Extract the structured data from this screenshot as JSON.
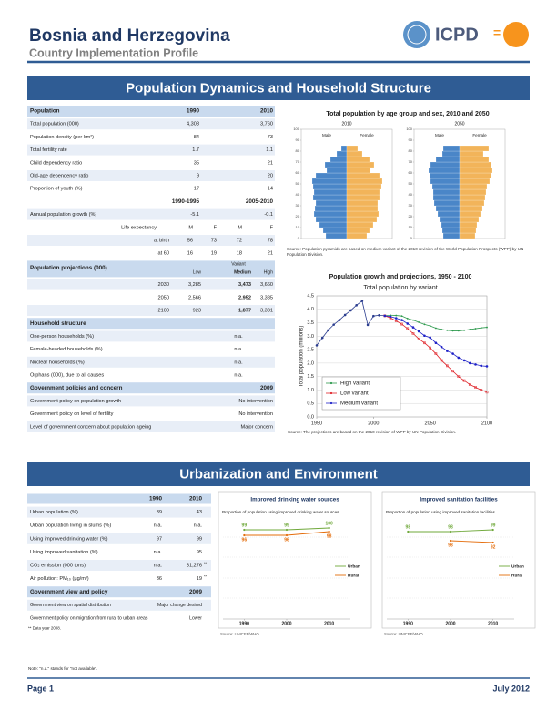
{
  "header": {
    "title": "Bosnia and Herzegovina",
    "subtitle": "Country Implementation Profile",
    "logo": "ICPD"
  },
  "section1": {
    "title": "Population Dynamics and Household Structure",
    "table": {
      "header": [
        "Population",
        "1990",
        "2010"
      ],
      "rows": [
        [
          "Total population (000)",
          "4,308",
          "3,760"
        ],
        [
          "Population density (per km²)",
          "84",
          "73"
        ],
        [
          "Total fertility rate",
          "1.7",
          "1.1"
        ],
        [
          "Child dependency ratio",
          "35",
          "21"
        ],
        [
          "Old-age dependency ratio",
          "9",
          "20"
        ],
        [
          "Proportion of youth (%)",
          "17",
          "14"
        ]
      ],
      "period_header": [
        "1990-1995",
        "2005-2010"
      ],
      "growth_row": [
        "Annual population growth (%)",
        "-5.1",
        "-0.1"
      ],
      "life": {
        "label": "Life expectancy",
        "cols": [
          "M",
          "F",
          "M",
          "F"
        ],
        "rows": [
          [
            "at birth",
            "56",
            "73",
            "72",
            "78"
          ],
          [
            "at 60",
            "16",
            "19",
            "18",
            "21"
          ]
        ]
      },
      "projections": {
        "title": "Population projections (000)",
        "variant": "Variant",
        "cols": [
          "Low",
          "Medium",
          "High"
        ],
        "rows": [
          [
            "2030",
            "3,285",
            "3,473",
            "3,660"
          ],
          [
            "2050",
            "2,566",
            "2,952",
            "3,385"
          ],
          [
            "2100",
            "923",
            "1,877",
            "3,331"
          ]
        ]
      },
      "household": {
        "title": "Household structure",
        "rows": [
          [
            "One-person households (%)",
            "n.a."
          ],
          [
            "Female-headed households (%)",
            "n.a."
          ],
          [
            "Nuclear households (%)",
            "n.a."
          ],
          [
            "Orphans (000), due to all causes",
            "n.a."
          ]
        ]
      },
      "policies": {
        "title": "Government policies and concern",
        "year": "2009",
        "rows": [
          [
            "Government policy on population growth",
            "No intervention"
          ],
          [
            "Government policy on level of fertility",
            "No intervention"
          ],
          [
            "Level of government concern about population ageing",
            "Major concern"
          ]
        ]
      }
    }
  },
  "section2": {
    "title": "Urbanization and Environment",
    "table": {
      "header": [
        "1990",
        "2010"
      ],
      "rows": [
        [
          "Urban population (%)",
          "39",
          "43"
        ],
        [
          "Urban population living in slums (%)",
          "n.a.",
          "n.a."
        ],
        [
          "Using improved drinking water (%)",
          "97",
          "99"
        ],
        [
          "Using improved sanitation (%)",
          "n.a.",
          "95"
        ],
        [
          "CO₂ emission (000 tons)",
          "n.a.",
          "31,276",
          "**"
        ],
        [
          "Air pollution: PM₁₀ (µg/m³)",
          "36",
          "19",
          "**"
        ]
      ],
      "policy_header": [
        "Government view and policy",
        "2009"
      ],
      "policy_rows": [
        [
          "Government view on spatial distribution",
          "Major change desired"
        ],
        [
          "Government policy on migration from rural to urban areas",
          "Lower"
        ]
      ],
      "footnote": "** Data year 2008."
    }
  },
  "chart_data": [
    {
      "type": "pyramid",
      "title": "Total population by age group and sex, 2010 and 2050",
      "ylim": [
        0,
        100
      ],
      "yticks": [
        0,
        10,
        20,
        30,
        40,
        50,
        60,
        70,
        80,
        90,
        100
      ],
      "xlim": [
        -5,
        5
      ],
      "panels": [
        {
          "year": "2010",
          "series": [
            {
              "name": "Male",
              "color": "#4a86c8",
              "values": [
                2.3,
                2.6,
                3.0,
                3.4,
                3.6,
                3.5,
                3.4,
                3.7,
                3.6,
                3.7,
                3.8,
                3.4,
                2.2,
                2.4,
                1.8,
                1.1,
                0.6
              ]
            },
            {
              "name": "Female",
              "color": "#f2b45a",
              "values": [
                2.2,
                2.5,
                2.9,
                3.3,
                3.5,
                3.4,
                3.4,
                3.6,
                3.6,
                3.8,
                3.9,
                3.6,
                2.6,
                3.0,
                2.5,
                1.7,
                1.2
              ]
            }
          ]
        },
        {
          "year": "2050",
          "series": [
            {
              "name": "Male",
              "color": "#4a86c8",
              "values": [
                1.8,
                1.9,
                2.0,
                2.2,
                2.4,
                2.6,
                2.8,
                2.9,
                2.9,
                3.0,
                3.2,
                3.3,
                3.4,
                3.2,
                2.6,
                1.9,
                1.8
              ]
            },
            {
              "name": "Female",
              "color": "#f2b45a",
              "values": [
                1.7,
                1.8,
                1.9,
                2.1,
                2.3,
                2.5,
                2.7,
                2.8,
                2.9,
                3.0,
                3.3,
                3.5,
                3.6,
                3.5,
                3.2,
                2.6,
                3.2
              ]
            }
          ]
        }
      ],
      "source": "Source: Population pyramids are based on medium variant of the 2010 revision of the World Population Prospects (WPP) by UN Population Division."
    },
    {
      "type": "line",
      "title": "Population growth and projections, 1950 - 2100",
      "subtitle": "Total population by variant",
      "ylabel": "Total population (millions)",
      "xlim": [
        1950,
        2100
      ],
      "xticks": [
        1950,
        2000,
        2050,
        2100
      ],
      "ylim": [
        0,
        4.5
      ],
      "yticks": [
        {
          "value": 0,
          "label": "0.0"
        },
        0.5,
        {
          "value": 1,
          "label": "1.0"
        },
        1.5,
        {
          "value": 2,
          "label": "2.0"
        },
        2.5,
        {
          "value": 3,
          "label": "3.0"
        },
        3.5,
        {
          "value": 4,
          "label": "4.0"
        },
        4.5
      ],
      "grid": true,
      "legend": "lower-left",
      "series": [
        {
          "color": "#2b3d8f",
          "x": [
            1950,
            1955,
            1960,
            1965,
            1970,
            1975,
            1980,
            1985,
            1990,
            1995,
            2000,
            2005,
            2010
          ],
          "values": [
            2.66,
            2.94,
            3.22,
            3.43,
            3.6,
            3.79,
            3.96,
            4.15,
            4.31,
            3.42,
            3.75,
            3.78,
            3.76
          ]
        },
        {
          "name": "High variant",
          "color": "#2e9a4e",
          "x": [
            2010,
            2015,
            2020,
            2025,
            2030,
            2035,
            2040,
            2045,
            2050,
            2055,
            2060,
            2065,
            2070,
            2075,
            2080,
            2085,
            2090,
            2095,
            2100
          ],
          "values": [
            3.76,
            3.78,
            3.77,
            3.75,
            3.66,
            3.6,
            3.52,
            3.44,
            3.385,
            3.3,
            3.25,
            3.22,
            3.2,
            3.2,
            3.22,
            3.25,
            3.28,
            3.31,
            3.33
          ]
        },
        {
          "name": "Low variant",
          "color": "#e0242a",
          "x": [
            2010,
            2015,
            2020,
            2025,
            2030,
            2035,
            2040,
            2045,
            2050,
            2055,
            2060,
            2065,
            2070,
            2075,
            2080,
            2085,
            2090,
            2095,
            2100
          ],
          "values": [
            3.76,
            3.68,
            3.57,
            3.45,
            3.285,
            3.1,
            2.9,
            2.75,
            2.566,
            2.35,
            2.1,
            1.9,
            1.7,
            1.5,
            1.35,
            1.2,
            1.1,
            1.0,
            0.92
          ]
        },
        {
          "name": "Medium variant",
          "color": "#1f22c8",
          "x": [
            2010,
            2015,
            2020,
            2025,
            2030,
            2035,
            2040,
            2045,
            2050,
            2055,
            2060,
            2065,
            2070,
            2075,
            2080,
            2085,
            2090,
            2095,
            2100
          ],
          "values": [
            3.76,
            3.73,
            3.67,
            3.6,
            3.47,
            3.33,
            3.18,
            3.02,
            2.95,
            2.75,
            2.6,
            2.45,
            2.35,
            2.2,
            2.1,
            2.0,
            1.95,
            1.9,
            1.88
          ]
        }
      ],
      "source": "Source: The projections are based on the 2010 revision of WPP by UN Population Division."
    },
    {
      "type": "line",
      "title": "Improved drinking water sources",
      "subtitle": "Proportion of population using improved drinking water sources",
      "xlim": [
        1985,
        2015
      ],
      "xticks": [
        1990,
        2000,
        2010
      ],
      "ylim": [
        50,
        105
      ],
      "legend": "right",
      "series": [
        {
          "name": "Urban",
          "color": "#6fa83a",
          "x": [
            1990,
            2000,
            2010
          ],
          "values": [
            99,
            99,
            100
          ]
        },
        {
          "name": "Rural",
          "color": "#e46c0a",
          "x": [
            1990,
            2000,
            2010
          ],
          "values": [
            96,
            96,
            98
          ]
        }
      ],
      "source": "Source: UNICEF/WHO"
    },
    {
      "type": "line",
      "title": "Improved sanitation facilities",
      "subtitle": "Proportion of population using improved sanitation facilities",
      "xlim": [
        1985,
        2015
      ],
      "xticks": [
        1990,
        2000,
        2010
      ],
      "ylim": [
        50,
        105
      ],
      "legend": "right",
      "series": [
        {
          "name": "Urban",
          "color": "#6fa83a",
          "x": [
            1990,
            2000,
            2010
          ],
          "values": [
            98,
            98,
            99
          ]
        },
        {
          "name": "Rural",
          "color": "#e46c0a",
          "x": [
            1990,
            2000,
            2010
          ],
          "values": [
            null,
            93,
            92
          ]
        }
      ],
      "source": "Source: UNICEF/WHO"
    }
  ],
  "note": "Note: \"n.a.\" stands for \"not available\".",
  "footer": {
    "page": "Page 1",
    "date": "July 2012"
  }
}
